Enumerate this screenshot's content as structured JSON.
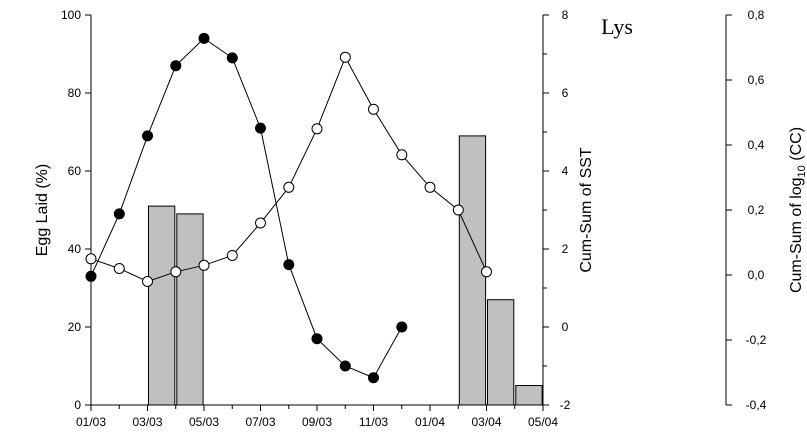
{
  "chart_data": {
    "type": "bar",
    "title": "Lys",
    "x": {
      "ticks": [
        "01/03",
        "03/03",
        "05/03",
        "07/03",
        "09/03",
        "11/03",
        "01/04",
        "03/04",
        "05/04"
      ],
      "domain_index": [
        0,
        16
      ]
    },
    "axes": {
      "left": {
        "label": "Egg Laid (%)",
        "ylim": [
          0,
          100
        ],
        "ticks": [
          "0",
          "20",
          "40",
          "60",
          "80",
          "100"
        ]
      },
      "right1": {
        "label": "Cum-Sum of SST",
        "ylim": [
          -2,
          8
        ],
        "ticks": [
          "-2",
          "0",
          "2",
          "4",
          "6",
          "8"
        ]
      },
      "right2": {
        "label_main": "Cum-Sum of log",
        "label_sub": "10",
        "label_tail": " (CC)",
        "ylim": [
          -0.4,
          0.8
        ],
        "ticks": [
          "-0,4",
          "-0,2",
          "0,0",
          "0,2",
          "0,4",
          "0,6",
          "0,8"
        ]
      }
    },
    "series": [
      {
        "name": "",
        "kind": "bar",
        "axis": "left",
        "color": "#c0c0c0",
        "points": [
          {
            "x": 2.5,
            "value": 51
          },
          {
            "x": 3.5,
            "value": 49
          },
          {
            "x": 13.5,
            "value": 69
          },
          {
            "x": 14.5,
            "value": 27
          },
          {
            "x": 15.5,
            "value": 5
          }
        ]
      },
      {
        "name": "",
        "kind": "line",
        "marker": "filled",
        "axis": "right1",
        "points": [
          {
            "x": 0,
            "y": 1.3
          },
          {
            "x": 1,
            "y": 2.9
          },
          {
            "x": 2,
            "y": 4.9
          },
          {
            "x": 3,
            "y": 6.7
          },
          {
            "x": 4,
            "y": 7.4
          },
          {
            "x": 5,
            "y": 6.9
          },
          {
            "x": 6,
            "y": 5.1
          },
          {
            "x": 7,
            "y": 1.6
          },
          {
            "x": 8,
            "y": -0.3
          },
          {
            "x": 9,
            "y": -1.0
          },
          {
            "x": 10,
            "y": -1.3
          },
          {
            "x": 11,
            "y": 0.0
          }
        ]
      },
      {
        "name": "",
        "kind": "line",
        "marker": "open",
        "axis": "right2",
        "points": [
          {
            "x": 0,
            "y": 0.05
          },
          {
            "x": 1,
            "y": 0.02
          },
          {
            "x": 2,
            "y": -0.02
          },
          {
            "x": 3,
            "y": 0.01
          },
          {
            "x": 4,
            "y": 0.03
          },
          {
            "x": 5,
            "y": 0.06
          },
          {
            "x": 6,
            "y": 0.16
          },
          {
            "x": 7,
            "y": 0.27
          },
          {
            "x": 8,
            "y": 0.45
          },
          {
            "x": 9,
            "y": 0.67
          },
          {
            "x": 10,
            "y": 0.51
          },
          {
            "x": 11,
            "y": 0.37
          },
          {
            "x": 12,
            "y": 0.27
          },
          {
            "x": 13,
            "y": 0.2
          },
          {
            "x": 14,
            "y": 0.01
          }
        ]
      }
    ],
    "grid": false
  }
}
